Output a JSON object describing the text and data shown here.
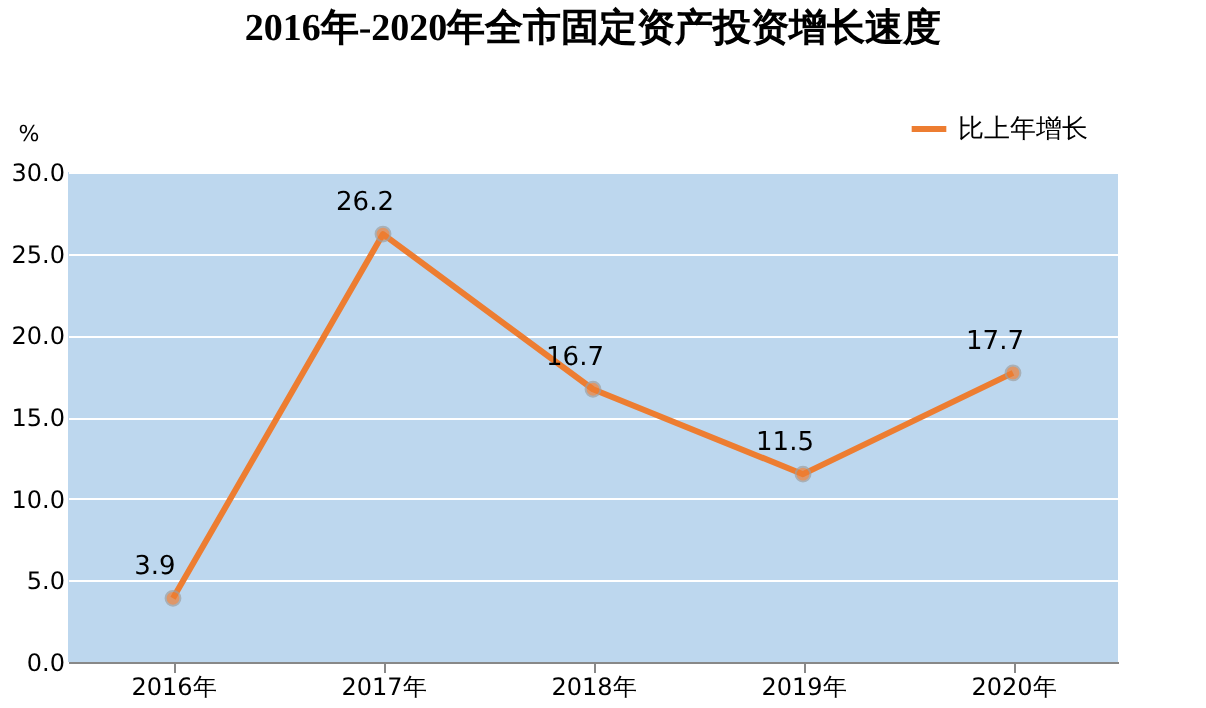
{
  "chart_data": {
    "type": "line",
    "title": "2016年-2020年全市固定资产投资增长速度",
    "ylabel": "%",
    "categories": [
      "2016年",
      "2017年",
      "2018年",
      "2019年",
      "2020年"
    ],
    "series": [
      {
        "name": "比上年增长",
        "color": "#ed7d31",
        "values": [
          3.9,
          26.2,
          16.7,
          11.5,
          17.7
        ]
      }
    ],
    "ylim": [
      0,
      30
    ],
    "yticks": [
      {
        "value": 0,
        "label": "0.0"
      },
      {
        "value": 5,
        "label": "5.0"
      },
      {
        "value": 10,
        "label": "10.0"
      },
      {
        "value": 15,
        "label": "15.0"
      },
      {
        "value": 20,
        "label": "20.0"
      },
      {
        "value": 25,
        "label": "25.0"
      },
      {
        "value": 30,
        "label": "30.0"
      }
    ],
    "grid": "y",
    "legend": "top right",
    "marker": "circle",
    "line_style": "solid",
    "data_labels": true
  }
}
